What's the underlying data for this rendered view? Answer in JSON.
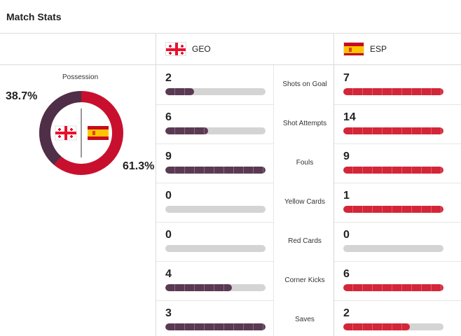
{
  "header": {
    "title": "Match Stats"
  },
  "teams": {
    "home": {
      "code": "GEO",
      "flag_icon": "georgia-flag-icon",
      "color": "#4f2f47"
    },
    "away": {
      "code": "ESP",
      "flag_icon": "spain-flag-icon",
      "color": "#c8102e"
    }
  },
  "possession": {
    "label": "Possession",
    "home_pct": 38.7,
    "away_pct": 61.3,
    "home_text": "38.7%",
    "away_text": "61.3%"
  },
  "stats": [
    {
      "label": "Shots on Goal",
      "home": 2,
      "away": 7
    },
    {
      "label": "Shot Attempts",
      "home": 6,
      "away": 14
    },
    {
      "label": "Fouls",
      "home": 9,
      "away": 9
    },
    {
      "label": "Yellow Cards",
      "home": 0,
      "away": 1
    },
    {
      "label": "Red Cards",
      "home": 0,
      "away": 0
    },
    {
      "label": "Corner Kicks",
      "home": 4,
      "away": 6
    },
    {
      "label": "Saves",
      "home": 3,
      "away": 2
    }
  ]
}
